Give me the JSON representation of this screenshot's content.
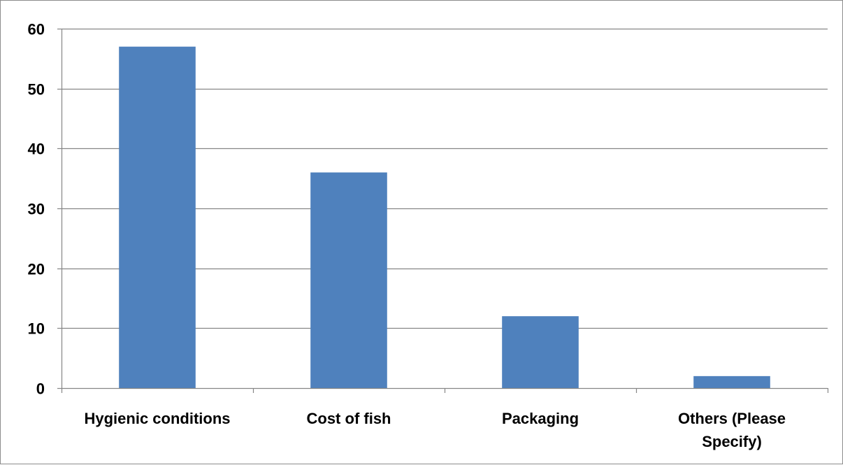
{
  "chart_data": {
    "type": "bar",
    "title": "",
    "xlabel": "",
    "ylabel": "",
    "categories": [
      "Hygienic conditions",
      "Cost of fish",
      "Packaging",
      "Others (Please Specify)"
    ],
    "category_lines": [
      [
        "Hygienic conditions"
      ],
      [
        "Cost of fish"
      ],
      [
        "Packaging"
      ],
      [
        "Others (Please",
        "Specify)"
      ]
    ],
    "values": [
      57,
      36,
      12,
      2
    ],
    "ylim": [
      0,
      60
    ],
    "yticks": [
      "0",
      "10",
      "20",
      "30",
      "40",
      "50",
      "60"
    ],
    "grid": true,
    "legend": "none",
    "bar_color": "#4F81BD",
    "grid_color": "#868686"
  }
}
